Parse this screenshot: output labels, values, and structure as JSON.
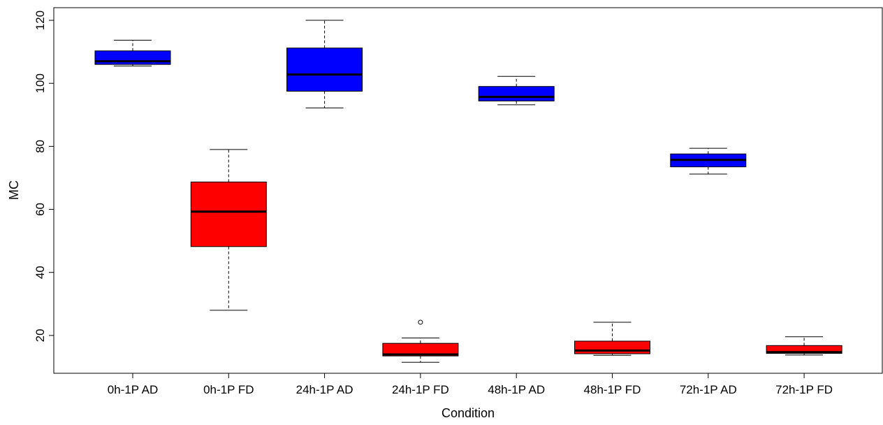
{
  "chart_data": {
    "type": "box",
    "title": "",
    "xlabel": "Condition",
    "ylabel": "MC",
    "ylim": [
      8,
      124
    ],
    "yticks": [
      20,
      40,
      60,
      80,
      100,
      120
    ],
    "grid": false,
    "legend": "none",
    "categories": [
      "0h-1P AD",
      "0h-1P FD",
      "24h-1P AD",
      "24h-1P FD",
      "48h-1P AD",
      "48h-1P FD",
      "72h-1P AD",
      "72h-1P FD"
    ],
    "boxes": [
      {
        "category": "0h-1P AD",
        "whisker_low": 105.5,
        "q1": 106.0,
        "median": 107.0,
        "q3": 110.3,
        "whisker_high": 113.7,
        "outliers": [],
        "color": "#0000ff"
      },
      {
        "category": "0h-1P FD",
        "whisker_low": 28.0,
        "q1": 48.2,
        "median": 59.3,
        "q3": 68.7,
        "whisker_high": 79.0,
        "outliers": [],
        "color": "#ff0000"
      },
      {
        "category": "24h-1P AD",
        "whisker_low": 92.2,
        "q1": 97.5,
        "median": 102.8,
        "q3": 111.2,
        "whisker_high": 120.0,
        "outliers": [],
        "color": "#0000ff"
      },
      {
        "category": "24h-1P FD",
        "whisker_low": 11.5,
        "q1": 13.5,
        "median": 14.0,
        "q3": 17.5,
        "whisker_high": 19.2,
        "outliers": [
          24.2
        ],
        "color": "#ff0000"
      },
      {
        "category": "48h-1P AD",
        "whisker_low": 93.2,
        "q1": 94.4,
        "median": 95.7,
        "q3": 99.0,
        "whisker_high": 102.2,
        "outliers": [],
        "color": "#0000ff"
      },
      {
        "category": "48h-1P FD",
        "whisker_low": 13.7,
        "q1": 14.2,
        "median": 15.2,
        "q3": 18.2,
        "whisker_high": 24.2,
        "outliers": [],
        "color": "#ff0000"
      },
      {
        "category": "72h-1P AD",
        "whisker_low": 71.2,
        "q1": 73.5,
        "median": 75.7,
        "q3": 77.6,
        "whisker_high": 79.4,
        "outliers": [],
        "color": "#0000ff"
      },
      {
        "category": "72h-1P FD",
        "whisker_low": 13.8,
        "q1": 14.3,
        "median": 14.7,
        "q3": 16.8,
        "whisker_high": 19.6,
        "outliers": [],
        "color": "#ff0000"
      }
    ]
  }
}
